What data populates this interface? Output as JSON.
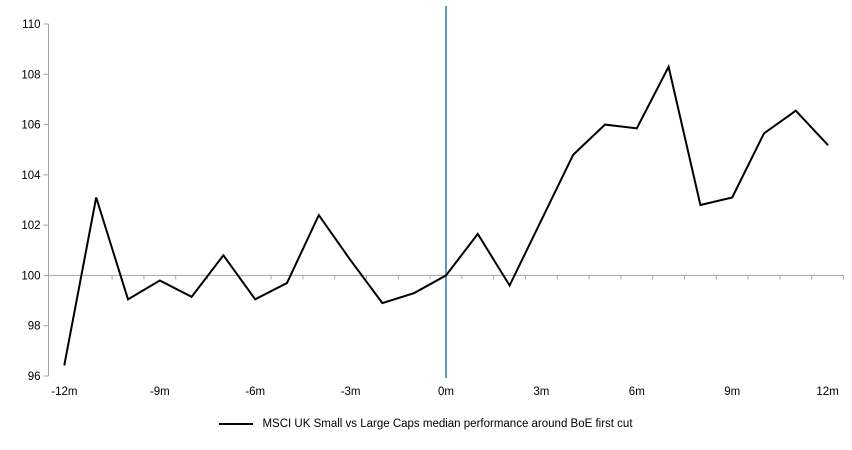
{
  "chart_data": {
    "type": "line",
    "title": "",
    "months": [
      -12,
      -11,
      -10,
      -9,
      -8,
      -7,
      -6,
      -5,
      -4,
      -3,
      -2,
      -1,
      0,
      1,
      2,
      3,
      4,
      5,
      6,
      7,
      8,
      9,
      10,
      11,
      12
    ],
    "series": [
      {
        "name": "MSCI UK Small vs Large Caps median performance around BoE first cut",
        "color": "#000000",
        "values": [
          96.45,
          103.1,
          99.05,
          99.8,
          99.15,
          100.8,
          99.05,
          99.7,
          102.4,
          100.6,
          98.9,
          99.3,
          100.0,
          101.65,
          99.6,
          102.2,
          104.8,
          106.0,
          105.85,
          108.3,
          102.8,
          103.1,
          105.65,
          106.55,
          105.2
        ]
      }
    ],
    "x_ticks": [
      {
        "month": -12,
        "label": "-12m"
      },
      {
        "month": -9,
        "label": "-9m"
      },
      {
        "month": -6,
        "label": "-6m"
      },
      {
        "month": -3,
        "label": "-3m"
      },
      {
        "month": 0,
        "label": "0m"
      },
      {
        "month": 3,
        "label": "3m"
      },
      {
        "month": 6,
        "label": "6m"
      },
      {
        "month": 9,
        "label": "9m"
      },
      {
        "month": 12,
        "label": "12m"
      }
    ],
    "y_ticks": [
      96,
      98,
      100,
      102,
      104,
      106,
      108,
      110
    ],
    "ylim": [
      96,
      110
    ],
    "baseline_value": 100,
    "event_line_month": 0,
    "grid": "none",
    "legend_position": "bottom-center",
    "colors": {
      "event_line": "#5B9BD5",
      "baseline": "#A6A6A6",
      "axis": "#A6A6A6",
      "text": "#000000",
      "background": "#FFFFFF"
    }
  }
}
